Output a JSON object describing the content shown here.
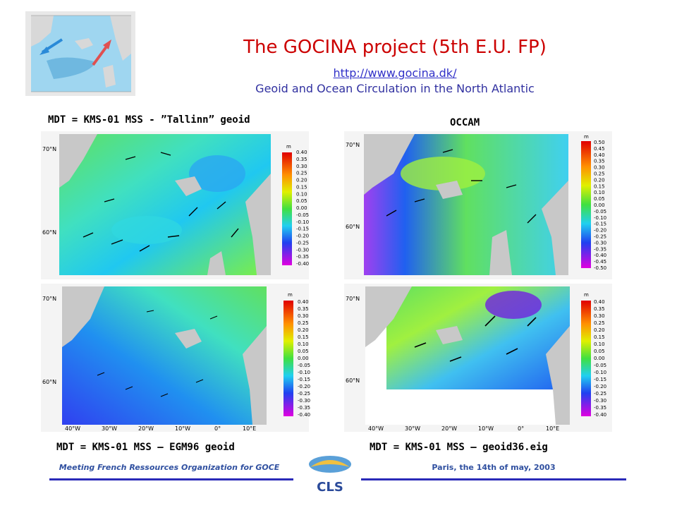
{
  "header": {
    "title": "The GOCINA project (5th E.U. FP)",
    "link": "http://www.gocina.dk/",
    "subtitle": "Geoid and Ocean Circulation in the North Atlantic"
  },
  "panels": {
    "top_left_caption": "MDT = KMS-01 MSS - ”Tallinn” geoid",
    "top_right_caption": "OCCAM",
    "bottom_left_caption": "MDT = KMS-01 MSS – EGM96 geoid",
    "bottom_right_caption": "MDT = KMS-01 MSS – geoid36.eig"
  },
  "colorbar": {
    "unit": "m",
    "scale_a": [
      "0.40",
      "0.35",
      "0.30",
      "0.25",
      "0.20",
      "0.15",
      "0.10",
      "0.05",
      "0.00",
      "-0.05",
      "-0.10",
      "-0.15",
      "-0.20",
      "-0.25",
      "-0.30",
      "-0.35",
      "-0.40"
    ],
    "scale_b": [
      "0.50",
      "0.45",
      "0.40",
      "0.35",
      "0.30",
      "0.25",
      "0.20",
      "0.15",
      "0.10",
      "0.05",
      "0.00",
      "-0.05",
      "-0.10",
      "-0.15",
      "-0.20",
      "-0.25",
      "-0.30",
      "-0.35",
      "-0.40",
      "-0.45",
      "-0.50"
    ]
  },
  "axes": {
    "lat_labels": [
      "70°N",
      "60°N"
    ],
    "lon_labels": [
      "40°W",
      "30°W",
      "20°W",
      "10°W",
      "0°",
      "10°E"
    ]
  },
  "footer": {
    "left": "Meeting French Ressources Organization for GOCE",
    "right": "Paris, the 14th of may, 2003",
    "logo_text": "CLS"
  },
  "colors": {
    "title": "#cc0000",
    "link": "#3030c8",
    "rule": "#2a2ab8"
  }
}
